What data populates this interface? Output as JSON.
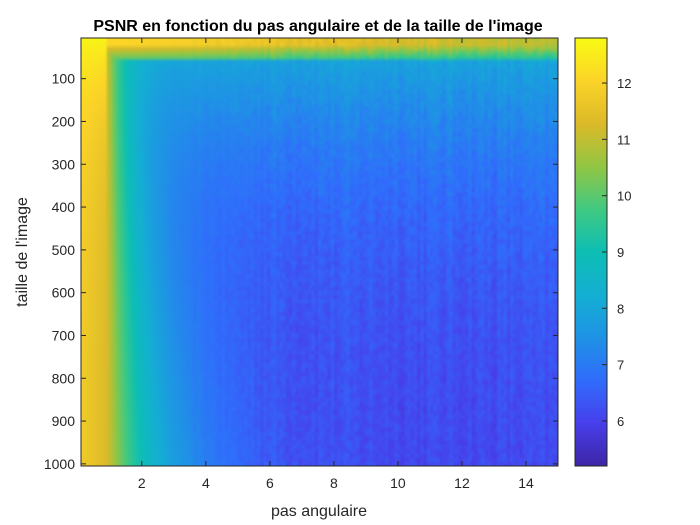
{
  "chart_data": {
    "type": "heatmap",
    "title": "PSNR en fonction du pas angulaire et de la taille de l'image",
    "xlabel": "pas angulaire",
    "ylabel": "taille de l'image",
    "xlim": [
      0.1,
      15
    ],
    "ylim": [
      10,
      1000
    ],
    "y_direction": "reverse",
    "x_ticks": [
      2,
      4,
      6,
      8,
      10,
      12,
      14
    ],
    "x_tick_labels": [
      "2",
      "4",
      "6",
      "8",
      "10",
      "12",
      "14"
    ],
    "y_ticks": [
      100,
      200,
      300,
      400,
      500,
      600,
      700,
      800,
      900,
      1000
    ],
    "y_tick_labels": [
      "100",
      "200",
      "300",
      "400",
      "500",
      "600",
      "700",
      "800",
      "900",
      "1000"
    ],
    "colorbar": {
      "colormap": "parula",
      "clim": [
        5.2,
        12.8
      ],
      "ticks": [
        6,
        7,
        8,
        9,
        10,
        11,
        12
      ],
      "tick_labels": [
        "6",
        "7",
        "8",
        "9",
        "10",
        "11",
        "12"
      ],
      "position": "right"
    },
    "x_step": 0.1,
    "y_step": 10,
    "sample_values": [
      {
        "x": 0.3,
        "y": 100,
        "value": 12.7
      },
      {
        "x": 0.6,
        "y": 600,
        "value": 11.4
      },
      {
        "x": 2.0,
        "y": 50,
        "value": 12.3
      },
      {
        "x": 2.0,
        "y": 500,
        "value": 8.5
      },
      {
        "x": 4.0,
        "y": 300,
        "value": 7.8
      },
      {
        "x": 6.0,
        "y": 700,
        "value": 6.9
      },
      {
        "x": 10.0,
        "y": 600,
        "value": 6.3
      },
      {
        "x": 14.0,
        "y": 900,
        "value": 5.8
      },
      {
        "x": 14.0,
        "y": 30,
        "value": 11.0
      }
    ]
  }
}
